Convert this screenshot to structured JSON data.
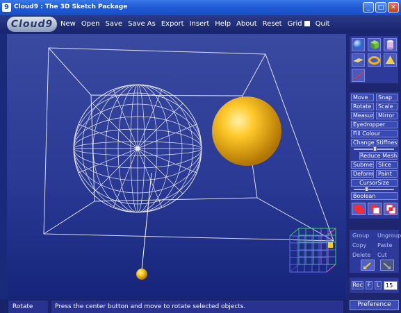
{
  "window": {
    "app_letter": "9",
    "title": "Cloud9 : The 3D Sketch Package"
  },
  "menu": {
    "logo": "Cloud9",
    "items": [
      "New",
      "Open",
      "Save",
      "Save As",
      "Export",
      "Insert",
      "Help",
      "About",
      "Reset",
      "Grid",
      "Quit"
    ]
  },
  "tools": {
    "move": "Move",
    "snap": "Snap",
    "rotate": "Rotate",
    "scale": "Scale",
    "measure": "Measure",
    "mirror": "Mirror",
    "eyedropper": "Eyedropper",
    "fill_colour": "Fill Colour",
    "change_stiffness": "Change Stiffness",
    "reduce_mesh": "Reduce Mesh",
    "submesh": "Submesh",
    "slice": "Slice",
    "deform": "Deform",
    "paint": "Paint",
    "cursor_size": "CursorSize",
    "boolean": "Boolean"
  },
  "grouping": {
    "group": "Group",
    "ungroup": "Ungroup",
    "copy": "Copy",
    "paste": "Paste",
    "delete": "Delete",
    "cut": "Cut"
  },
  "record": {
    "rec": "Rec",
    "f": "F",
    "l": "L",
    "value": "15"
  },
  "preference": "Preference",
  "status": {
    "mode": "Rotate",
    "message": "Press the center button and move to rotate selected objects."
  },
  "colors": {
    "accent_yellow": "#f0b21a",
    "panel_blue": "#2d3a9a",
    "viewport_blue": "#2a3a95"
  }
}
